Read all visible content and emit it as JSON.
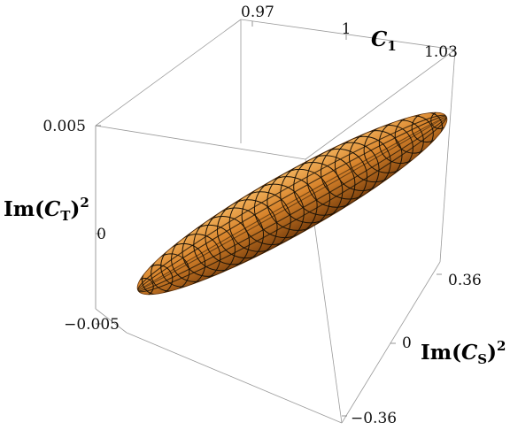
{
  "chart_data": {
    "type": "surface3d",
    "title": "",
    "axes": {
      "x": {
        "label_main": "C",
        "label_sub": "1",
        "range": [
          0.955,
          1.045
        ],
        "ticks": [
          {
            "value": 0.97,
            "label": "0.97"
          },
          {
            "value": 1.0,
            "label": "1"
          },
          {
            "value": 1.03,
            "label": "1.03"
          }
        ]
      },
      "y": {
        "label_pre": "Im(",
        "label_main": "C",
        "label_sub": "S",
        "label_post": ")",
        "label_sup": "2",
        "range": [
          -0.4,
          0.4
        ],
        "ticks": [
          {
            "value": 0.36,
            "label": "0.36"
          },
          {
            "value": 0,
            "label": "0"
          },
          {
            "value": -0.36,
            "label": "−0.36"
          }
        ]
      },
      "z": {
        "label_pre": "Im(",
        "label_main": "C",
        "label_sub": "T",
        "label_post": ")",
        "label_sup": "2",
        "range": [
          -0.006,
          0.006
        ],
        "ticks": [
          {
            "value": 0.005,
            "label": "0.005"
          },
          {
            "value": 0,
            "label": "0"
          },
          {
            "value": -0.005,
            "label": "−0.005"
          }
        ]
      }
    },
    "surface": {
      "shape": "ellipsoid",
      "center": {
        "C1": 1.0,
        "ImCS2": 0.0,
        "ImCT2": 0.0
      },
      "long_axis_end_high": {
        "C1": 1.02,
        "ImCS2": 0.38,
        "ImCT2": 0.004
      },
      "long_axis_end_low": {
        "C1": 0.98,
        "ImCS2": -0.38,
        "ImCT2": -0.004
      },
      "fill_color": "#d7822a",
      "highlight_color": "#f2b25c",
      "shadow_color": "#7a3f0c",
      "mesh_color": "#1a1207",
      "mesh_rings": 24
    },
    "box": true,
    "grid": false
  }
}
